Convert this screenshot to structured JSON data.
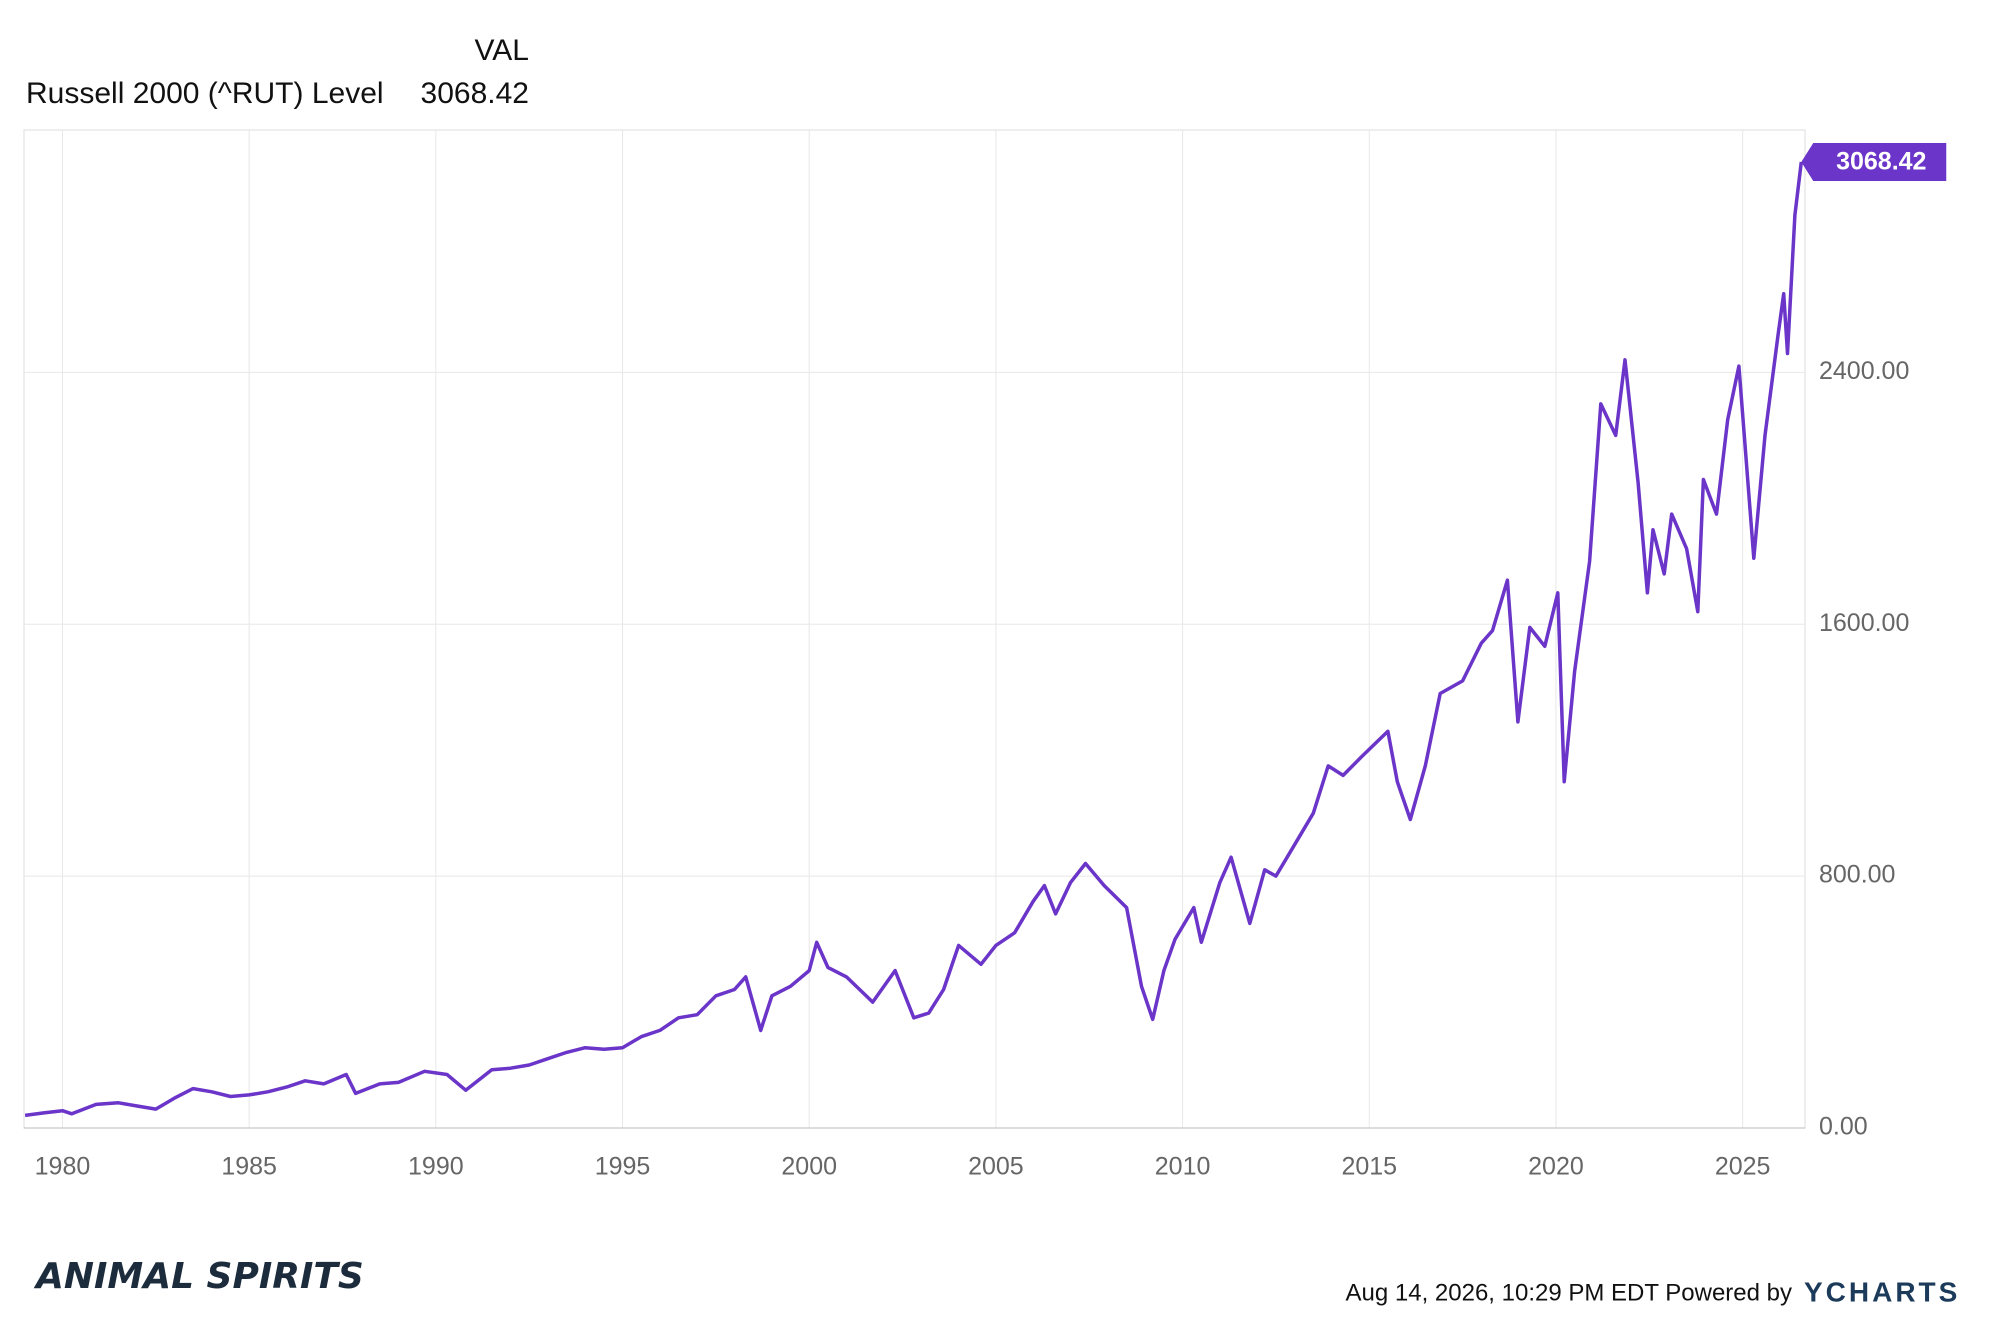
{
  "chart_data": {
    "type": "line",
    "header": {
      "column_label": "VAL"
    },
    "series": [
      {
        "name": "Russell 2000 (^RUT) Level",
        "color": "#6a35c8",
        "x": [
          1979.0,
          1979.5,
          1980.0,
          1980.25,
          1980.9,
          1981.5,
          1982.0,
          1982.5,
          1983.0,
          1983.5,
          1984.0,
          1984.5,
          1985.0,
          1985.5,
          1986.0,
          1986.5,
          1987.0,
          1987.6,
          1987.85,
          1988.5,
          1989.0,
          1989.7,
          1990.3,
          1990.8,
          1991.5,
          1992.0,
          1992.5,
          1993.0,
          1993.5,
          1994.0,
          1994.5,
          1995.0,
          1995.5,
          1996.0,
          1996.5,
          1997.0,
          1997.5,
          1998.0,
          1998.3,
          1998.7,
          1999.0,
          1999.5,
          2000.0,
          2000.2,
          2000.5,
          2001.0,
          2001.7,
          2002.3,
          2002.8,
          2003.2,
          2003.6,
          2004.0,
          2004.6,
          2005.0,
          2005.5,
          2006.0,
          2006.3,
          2006.6,
          2007.0,
          2007.4,
          2007.9,
          2008.5,
          2008.9,
          2009.2,
          2009.5,
          2009.8,
          2010.3,
          2010.5,
          2011.0,
          2011.3,
          2011.8,
          2012.2,
          2012.5,
          2013.0,
          2013.5,
          2013.9,
          2014.3,
          2014.8,
          2015.5,
          2015.75,
          2016.1,
          2016.5,
          2016.9,
          2017.5,
          2018.0,
          2018.3,
          2018.7,
          2018.98,
          2019.3,
          2019.7,
          2020.05,
          2020.22,
          2020.5,
          2020.9,
          2021.2,
          2021.6,
          2021.85,
          2022.2,
          2022.45,
          2022.6,
          2022.9,
          2023.1,
          2023.5,
          2023.8,
          2023.95,
          2024.3,
          2024.6,
          2024.9,
          2025.3,
          2025.6,
          2025.95,
          2026.1,
          2026.2,
          2026.4,
          2026.57
        ],
        "values": [
          40,
          48,
          55,
          45,
          75,
          80,
          70,
          60,
          95,
          125,
          115,
          100,
          105,
          115,
          130,
          150,
          140,
          170,
          110,
          140,
          145,
          180,
          170,
          120,
          185,
          190,
          200,
          220,
          240,
          255,
          250,
          255,
          290,
          310,
          350,
          360,
          420,
          440,
          480,
          310,
          420,
          450,
          500,
          590,
          510,
          480,
          400,
          500,
          350,
          365,
          440,
          580,
          520,
          580,
          620,
          720,
          770,
          680,
          780,
          840,
          770,
          700,
          450,
          345,
          500,
          600,
          700,
          590,
          780,
          860,
          650,
          820,
          800,
          900,
          1000,
          1150,
          1120,
          1180,
          1260,
          1100,
          980,
          1150,
          1380,
          1420,
          1540,
          1580,
          1740,
          1290,
          1590,
          1530,
          1700,
          1100,
          1450,
          1800,
          2300,
          2200,
          2440,
          2050,
          1700,
          1900,
          1760,
          1950,
          1840,
          1640,
          2060,
          1950,
          2250,
          2420,
          1810,
          2200,
          2520,
          2650,
          2460,
          2900,
          3068.42
        ]
      }
    ],
    "xlim": [
      1978.97,
      2026.67
    ],
    "xticks": [
      1980,
      1985,
      1990,
      1995,
      2000,
      2005,
      2010,
      2015,
      2020,
      2025
    ],
    "ylim": [
      0,
      3170
    ],
    "yticks": [
      {
        "value": 0,
        "label": "0.00"
      },
      {
        "value": 800,
        "label": "800.00"
      },
      {
        "value": 1600,
        "label": "1600.00"
      },
      {
        "value": 2400,
        "label": "2400.00"
      }
    ],
    "grid": true,
    "footer": {
      "timestamp": "Aug 14, 2026, 10:29 PM EDT Powered by",
      "brand": "YCHARTS",
      "logo": "ANIMAL SPIRITS"
    }
  }
}
